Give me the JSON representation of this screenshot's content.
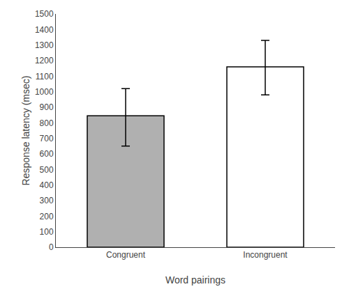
{
  "chart_data": {
    "type": "bar",
    "categories": [
      "Congruent",
      "Incongruent"
    ],
    "values": [
      845,
      1160
    ],
    "colors": [
      "#b0b0b0",
      "#ffffff"
    ],
    "error_lower": [
      195,
      180
    ],
    "error_upper": [
      175,
      170
    ],
    "xlabel": "Word pairings",
    "ylabel": "Response latency (msec)",
    "ylim": [
      0,
      1500
    ],
    "yticks": [
      0,
      100,
      200,
      300,
      400,
      500,
      600,
      700,
      800,
      900,
      1000,
      1100,
      1200,
      1300,
      1400,
      1500
    ],
    "grid": false
  }
}
